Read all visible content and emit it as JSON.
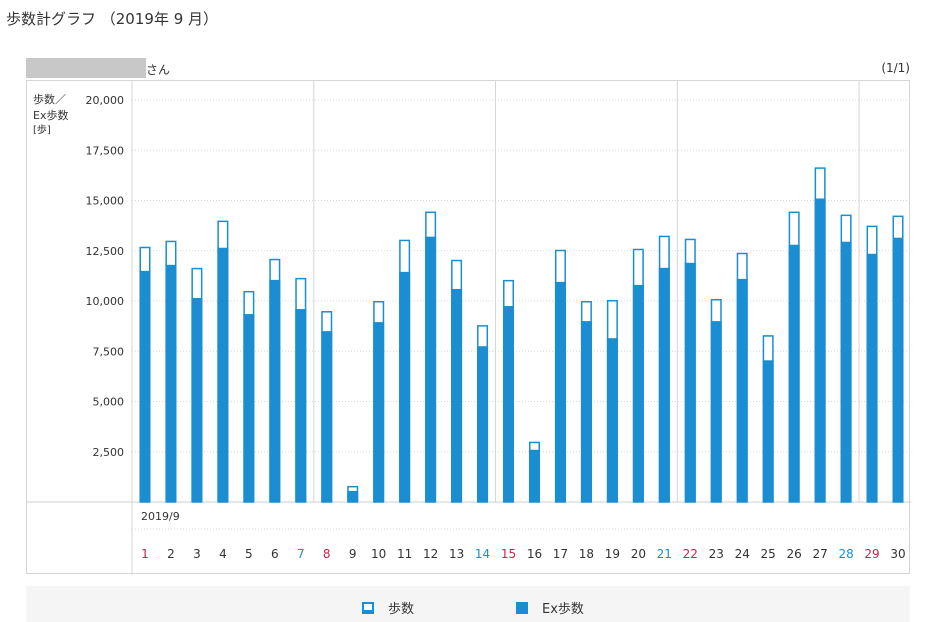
{
  "page": {
    "title": "歩数計グラフ （2019年 9 月）"
  },
  "user": {
    "name_suffix": "さん",
    "pagination": "(1/1)"
  },
  "legend": {
    "steps_label": "歩数",
    "ex_steps_label": "Ex歩数"
  },
  "colors": {
    "bar": "#1a8ed1",
    "weekday": "#333333",
    "saturday": "#1a8ed1",
    "sunday": "#c8234a"
  },
  "chart_data": {
    "type": "bar",
    "ylabel_lines": [
      "歩数／",
      "Ex歩数",
      "[歩]"
    ],
    "ylim": [
      0,
      20000
    ],
    "yticks": [
      "20,000",
      "17,500",
      "15,000",
      "12,500",
      "10,000",
      "7,500",
      "5,000",
      "2,500"
    ],
    "month_label": "2019/9",
    "categories": [
      "1",
      "2",
      "3",
      "4",
      "5",
      "6",
      "7",
      "8",
      "9",
      "10",
      "11",
      "12",
      "13",
      "14",
      "15",
      "16",
      "17",
      "18",
      "19",
      "20",
      "21",
      "22",
      "23",
      "24",
      "25",
      "26",
      "27",
      "28",
      "29",
      "30"
    ],
    "category_colors": [
      "sunday",
      "weekday",
      "weekday",
      "weekday",
      "weekday",
      "weekday",
      "saturday",
      "sunday",
      "weekday",
      "weekday",
      "weekday",
      "weekday",
      "weekday",
      "saturday",
      "sunday",
      "weekday",
      "weekday",
      "weekday",
      "weekday",
      "weekday",
      "saturday",
      "sunday",
      "weekday",
      "weekday",
      "weekday",
      "weekday",
      "weekday",
      "saturday",
      "sunday",
      "weekday"
    ],
    "week_separators_after": [
      "7",
      "14",
      "21",
      "28"
    ],
    "series": [
      {
        "name": "歩数",
        "values": [
          12700,
          13000,
          11650,
          14000,
          10500,
          12100,
          11150,
          9500,
          800,
          10000,
          13050,
          14450,
          12050,
          8800,
          11050,
          3000,
          12550,
          10000,
          10050,
          12600,
          13250,
          13100,
          10100,
          12400,
          8300,
          14450,
          16650,
          14300,
          13750,
          14250
        ]
      },
      {
        "name": "Ex歩数",
        "values": [
          11500,
          11800,
          10150,
          12650,
          9350,
          11050,
          9600,
          8500,
          550,
          8950,
          11450,
          13200,
          10600,
          7750,
          9750,
          2600,
          10950,
          9000,
          8150,
          10800,
          11650,
          11900,
          9000,
          11100,
          7050,
          12800,
          15100,
          12950,
          12350,
          13150
        ]
      }
    ]
  }
}
